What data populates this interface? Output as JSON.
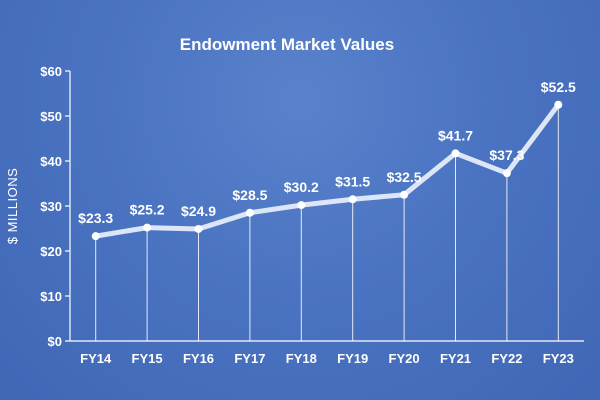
{
  "chart_data": {
    "type": "line",
    "title": "Endowment Market Values",
    "xlabel": "",
    "ylabel": "$ MILLIONS",
    "categories": [
      "FY14",
      "FY15",
      "FY16",
      "FY17",
      "FY18",
      "FY19",
      "FY20",
      "FY21",
      "FY22",
      "FY23"
    ],
    "values": [
      23.3,
      25.2,
      24.9,
      28.5,
      30.2,
      31.5,
      32.5,
      41.7,
      37.3,
      52.5
    ],
    "value_labels": [
      "$23.3",
      "$25.2",
      "$24.9",
      "$28.5",
      "$30.2",
      "$31.5",
      "$32.5",
      "$41.7",
      "$37.3",
      "$52.5"
    ],
    "yticks": [
      0,
      10,
      20,
      30,
      40,
      50,
      60
    ],
    "ytick_labels": [
      "$0",
      "$10",
      "$20",
      "$30",
      "$40",
      "$50",
      "$60"
    ],
    "ylim": [
      0,
      60
    ],
    "grid": false,
    "drop_lines": true,
    "colors": {
      "background": "#4a73c1",
      "line": "#dce6f7",
      "marker": "#ffffff",
      "axis": "#ffffff",
      "text": "#ffffff"
    }
  }
}
